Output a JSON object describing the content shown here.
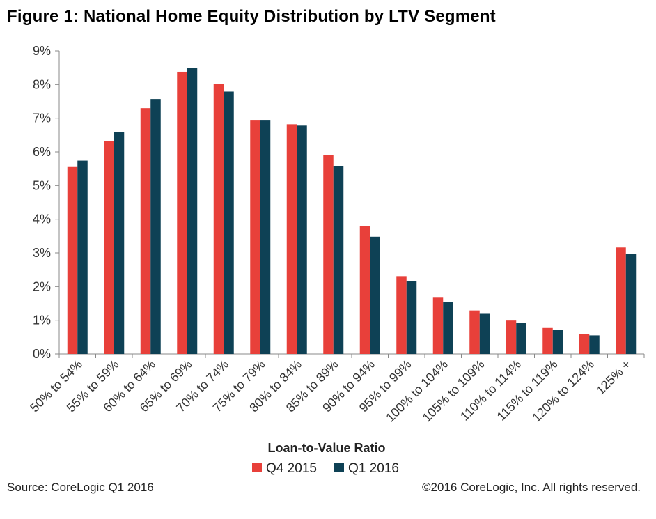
{
  "chart_data": {
    "type": "bar",
    "title": "Figure 1: National Home Equity Distribution by LTV Segment",
    "xlabel": "Loan-to-Value Ratio",
    "ylabel": "",
    "ylim": [
      0,
      9
    ],
    "yticks": [
      "0%",
      "1%",
      "2%",
      "3%",
      "4%",
      "5%",
      "6%",
      "7%",
      "8%",
      "9%"
    ],
    "grid": false,
    "legend": "bottom",
    "categories": [
      "50% to 54%",
      "55% to 59%",
      "60% to 64%",
      "65% to 69%",
      "70% to 74%",
      "75% to 79%",
      "80% to 84%",
      "85% to 89%",
      "90% to 94%",
      "95% to 99%",
      "100% to 104%",
      "105% to 109%",
      "110% to 114%",
      "115% to 119%",
      "120% to 124%",
      "125% +"
    ],
    "series": [
      {
        "name": "Q4 2015",
        "color": "#e8403a",
        "values": [
          5.55,
          6.33,
          7.3,
          8.38,
          8.01,
          6.95,
          6.82,
          5.9,
          3.8,
          2.31,
          1.67,
          1.29,
          0.99,
          0.77,
          0.6,
          3.16
        ]
      },
      {
        "name": "Q1 2016",
        "color": "#0e4155",
        "values": [
          5.74,
          6.58,
          7.57,
          8.5,
          7.79,
          6.95,
          6.78,
          5.58,
          3.48,
          2.16,
          1.55,
          1.19,
          0.92,
          0.72,
          0.55,
          2.97
        ]
      }
    ]
  },
  "footer": {
    "source": "Source: CoreLogic Q1 2016",
    "copyright": "©2016 CoreLogic, Inc. All rights reserved."
  }
}
